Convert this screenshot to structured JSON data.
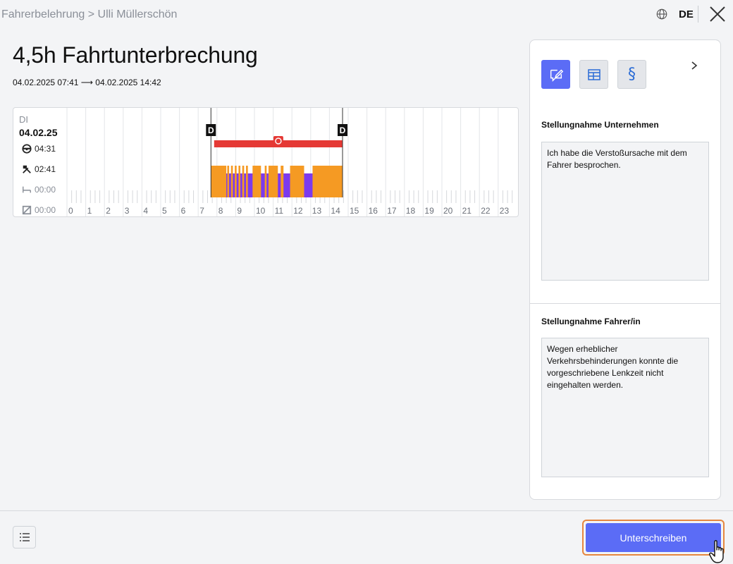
{
  "header": {
    "breadcrumb": "Fahrerbelehrung > Ulli Müllerschön",
    "language": "DE",
    "icons": [
      "globe-icon",
      "close-icon"
    ]
  },
  "main": {
    "title": "4,5h Fahrtunterbrechung",
    "date_range": "04.02.2025 07:41 ⟶ 04.02.2025 14:42"
  },
  "activity_chart": {
    "day_short": "DI",
    "day_date": "04.02.25",
    "stats": [
      {
        "icon": "steering-wheel-icon",
        "value": "04:31"
      },
      {
        "icon": "hammer-icon",
        "value": "02:41"
      },
      {
        "icon": "bed-icon",
        "value": "00:00"
      },
      {
        "icon": "availability-icon",
        "value": "00:00"
      }
    ],
    "hours": [
      "0",
      "1",
      "2",
      "3",
      "4",
      "5",
      "6",
      "7",
      "8",
      "9",
      "10",
      "11",
      "12",
      "13",
      "14",
      "15",
      "16",
      "17",
      "18",
      "19",
      "20",
      "21",
      "22",
      "23"
    ],
    "marker_label": "D",
    "markers_hours": [
      7.68,
      14.7
    ],
    "violation_span_hours": [
      7.85,
      14.7
    ],
    "colors": {
      "driving": "#7c3aed",
      "work": "#f59a23",
      "violation": "#e53935",
      "grid": "#e3e5e8"
    },
    "work_segments_hours": [
      [
        7.68,
        8.5
      ],
      [
        8.55,
        8.65
      ],
      [
        8.75,
        8.85
      ],
      [
        8.95,
        9.05
      ],
      [
        9.15,
        9.25
      ],
      [
        9.35,
        9.45
      ],
      [
        9.55,
        9.65
      ],
      [
        9.9,
        10.35
      ],
      [
        10.55,
        10.65
      ],
      [
        10.75,
        11.25
      ],
      [
        11.4,
        11.55
      ],
      [
        11.9,
        12.65
      ],
      [
        13.1,
        14.7
      ]
    ],
    "driving_span_hours": [
      7.68,
      14.7
    ]
  },
  "side_panel": {
    "tabs": [
      {
        "name": "comment-tab",
        "icon": "edit-comment-icon",
        "active": true
      },
      {
        "name": "table-tab",
        "icon": "table-icon",
        "active": false
      },
      {
        "name": "paragraph-tab",
        "icon": "paragraph-icon",
        "active": false
      }
    ],
    "company_title": "Stellungnahme Unternehmen",
    "company_text": "Ich habe die Verstoßursache mit dem Fahrer besprochen.",
    "driver_title": "Stellungnahme Fahrer/in",
    "driver_text": "Wegen erheblicher Verkehrsbehinderungen konnte die vorgeschriebene Lenkzeit nicht eingehalten werden."
  },
  "footer": {
    "sign_label": "Unterschreiben",
    "accent": "#5b6cf6",
    "focus_ring": "#e6873f"
  }
}
